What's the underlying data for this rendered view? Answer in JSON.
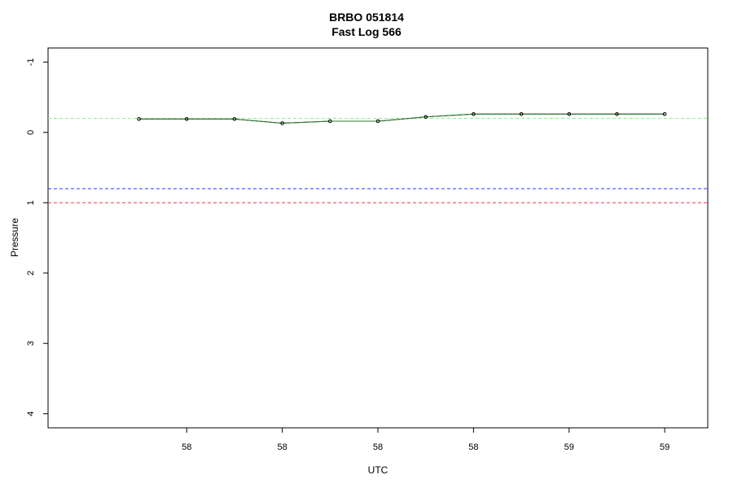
{
  "chart_data": {
    "type": "line",
    "title": "BRBO 051814",
    "subtitle": "Fast Log 566",
    "xlabel": "UTC",
    "ylabel": "Pressure",
    "x_ticks": [
      {
        "value": 1,
        "label": "58"
      },
      {
        "value": 2,
        "label": "58"
      },
      {
        "value": 3,
        "label": "58"
      },
      {
        "value": 4,
        "label": "58"
      },
      {
        "value": 5,
        "label": "59"
      },
      {
        "value": 6,
        "label": "59"
      }
    ],
    "y_ticks": [
      -1,
      0,
      1,
      2,
      3,
      4
    ],
    "xlim": [
      -0.45,
      6.45
    ],
    "ylim": [
      4.2,
      -1.2
    ],
    "y_reversed": true,
    "grid": false,
    "series": [
      {
        "color": "#000000",
        "x": [
          0.5,
          1.0,
          1.5,
          2.0,
          2.5,
          3.0,
          3.5,
          4.0,
          4.5,
          5.0,
          5.5,
          6.0
        ],
        "values": [
          -0.19,
          -0.19,
          -0.19,
          -0.13,
          -0.16,
          -0.16,
          -0.22,
          -0.26,
          -0.26,
          -0.26,
          -0.26,
          -0.26
        ]
      }
    ],
    "smooth_line": {
      "color": "#2e7d32",
      "x": [
        0.5,
        1.0,
        1.5,
        2.0,
        2.5,
        3.0,
        3.5,
        4.0,
        4.5,
        5.0,
        5.5,
        6.0
      ],
      "values": [
        -0.19,
        -0.19,
        -0.19,
        -0.13,
        -0.16,
        -0.16,
        -0.22,
        -0.26,
        -0.26,
        -0.26,
        -0.26,
        -0.26
      ]
    },
    "reference_lines": [
      {
        "value": -0.2,
        "color": "#90ee90",
        "style": "dashed"
      },
      {
        "value": 0.8,
        "color": "#3333ff",
        "style": "dashed"
      },
      {
        "value": 1.0,
        "color": "#ee3355",
        "style": "dashed"
      }
    ]
  }
}
